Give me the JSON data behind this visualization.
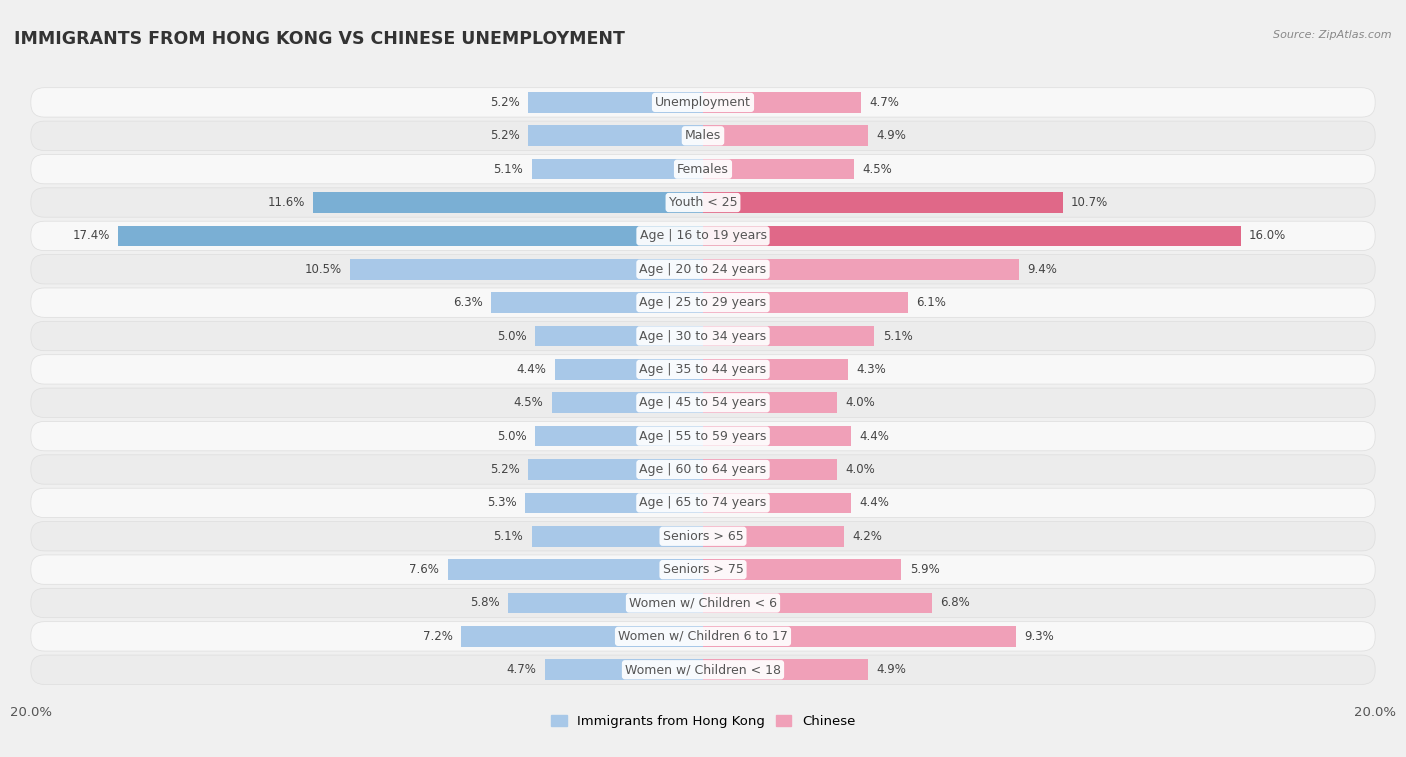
{
  "title": "IMMIGRANTS FROM HONG KONG VS CHINESE UNEMPLOYMENT",
  "source": "Source: ZipAtlas.com",
  "categories": [
    "Unemployment",
    "Males",
    "Females",
    "Youth < 25",
    "Age | 16 to 19 years",
    "Age | 20 to 24 years",
    "Age | 25 to 29 years",
    "Age | 30 to 34 years",
    "Age | 35 to 44 years",
    "Age | 45 to 54 years",
    "Age | 55 to 59 years",
    "Age | 60 to 64 years",
    "Age | 65 to 74 years",
    "Seniors > 65",
    "Seniors > 75",
    "Women w/ Children < 6",
    "Women w/ Children 6 to 17",
    "Women w/ Children < 18"
  ],
  "hk_values": [
    5.2,
    5.2,
    5.1,
    11.6,
    17.4,
    10.5,
    6.3,
    5.0,
    4.4,
    4.5,
    5.0,
    5.2,
    5.3,
    5.1,
    7.6,
    5.8,
    7.2,
    4.7
  ],
  "chinese_values": [
    4.7,
    4.9,
    4.5,
    10.7,
    16.0,
    9.4,
    6.1,
    5.1,
    4.3,
    4.0,
    4.4,
    4.0,
    4.4,
    4.2,
    5.9,
    6.8,
    9.3,
    4.9
  ],
  "hk_color": "#a8c8e8",
  "chinese_color": "#f0a0b8",
  "hk_color_strong": "#7aafd4",
  "chinese_color_strong": "#e06888",
  "axis_max": 20.0,
  "bg_color": "#f0f0f0",
  "row_bg_color": "#f8f8f8",
  "row_bg_color_alt": "#ececec",
  "row_border_color": "#dddddd",
  "label_fontsize": 9.0,
  "title_fontsize": 12.5,
  "value_fontsize": 8.5,
  "legend_label_hk": "Immigrants from Hong Kong",
  "legend_label_chinese": "Chinese"
}
